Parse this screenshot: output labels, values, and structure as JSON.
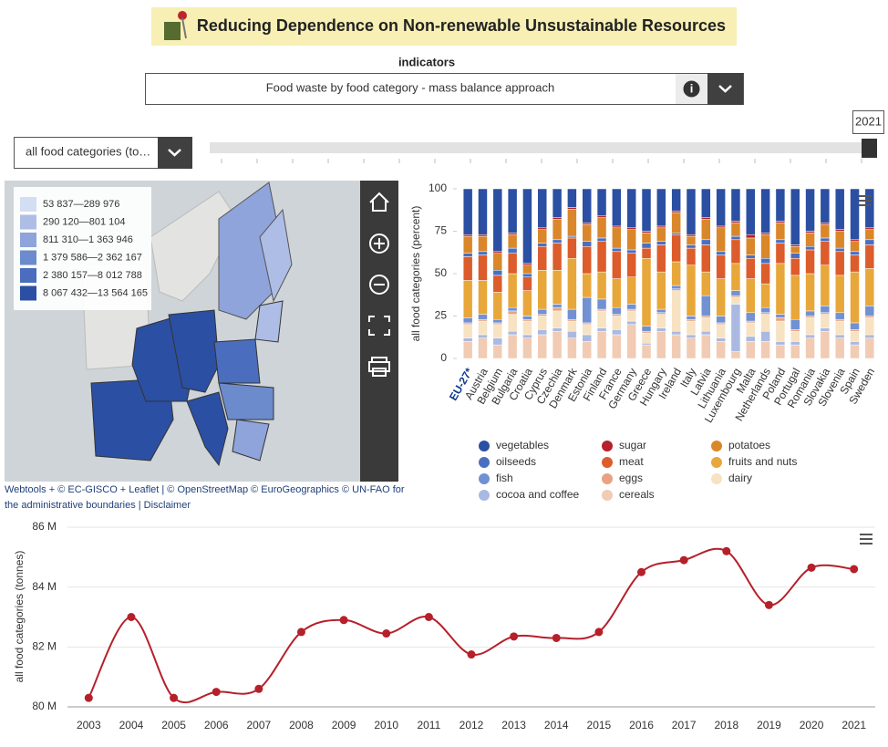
{
  "header": {
    "title": "Reducing Dependence on Non-renewable Unsustainable Resources"
  },
  "indicators": {
    "label": "indicators",
    "selected": "Food waste by food category - mass balance approach"
  },
  "category_select": "all food categories (to…",
  "slider": {
    "year": 2021
  },
  "map": {
    "legend": [
      {
        "label": "53 837—289 976",
        "color": "#d3def2"
      },
      {
        "label": "290 120—801 104",
        "color": "#adbde6"
      },
      {
        "label": "811 310—1 363 946",
        "color": "#8ea4da"
      },
      {
        "label": "1 379 586—2 362 167",
        "color": "#6c8bcd"
      },
      {
        "label": "2 380 157—8 012 788",
        "color": "#4a6dbe"
      },
      {
        "label": "8 067 432—13 564 165",
        "color": "#2b4fa2"
      }
    ],
    "credits": [
      "Webtools + © EC-GISCO + Leaflet | © OpenStreetMap © EuroGeographics © UN-FAO for",
      "the administrative boundaries | Disclaimer"
    ]
  },
  "chart_data": [
    {
      "type": "bar",
      "stacked": true,
      "ylabel": "all food categories (percent)",
      "ylim": [
        0,
        100
      ],
      "yticks": [
        0,
        25,
        50,
        75,
        100
      ],
      "categories": [
        "EU-27*",
        "Austria",
        "Belgium",
        "Bulgaria",
        "Croatia",
        "Cyprus",
        "Czechia",
        "Denmark",
        "Estonia",
        "Finland",
        "France",
        "Germany",
        "Greece",
        "Hungary",
        "Ireland",
        "Italy",
        "Latvia",
        "Lithuania",
        "Luxembourg",
        "Malta",
        "Netherlands",
        "Poland",
        "Portugal",
        "Romania",
        "Slovakia",
        "Slovenia",
        "Spain",
        "Sweden"
      ],
      "series": [
        {
          "name": "vegetables",
          "color": "#2b4fa2",
          "values": [
            27,
            27,
            37,
            26,
            44,
            23,
            17,
            11,
            20,
            16,
            22,
            23,
            25,
            22,
            13,
            27,
            17,
            22,
            19,
            27,
            26,
            19,
            33,
            25,
            20,
            24,
            30,
            23
          ]
        },
        {
          "name": "sugar",
          "color": "#b5202a",
          "values": [
            1,
            1,
            1,
            1,
            1,
            1,
            1,
            1,
            1,
            1,
            1,
            1,
            1,
            1,
            1,
            1,
            1,
            1,
            1,
            2,
            1,
            1,
            1,
            1,
            1,
            1,
            1,
            1
          ]
        },
        {
          "name": "potatoes",
          "color": "#d9872a",
          "values": [
            10,
            9,
            10,
            8,
            5,
            8,
            12,
            16,
            10,
            12,
            12,
            12,
            6,
            8,
            12,
            5,
            12,
            14,
            8,
            10,
            14,
            10,
            4,
            8,
            8,
            10,
            6,
            6
          ]
        },
        {
          "name": "oilseeds",
          "color": "#4a6fc0",
          "values": [
            2,
            2,
            3,
            3,
            2,
            2,
            2,
            1,
            3,
            2,
            2,
            2,
            3,
            2,
            1,
            2,
            3,
            2,
            2,
            2,
            3,
            2,
            3,
            2,
            2,
            2,
            2,
            3
          ]
        },
        {
          "name": "meat",
          "color": "#dc5c2c",
          "values": [
            14,
            15,
            10,
            12,
            8,
            14,
            16,
            12,
            16,
            18,
            16,
            14,
            6,
            16,
            16,
            10,
            16,
            14,
            14,
            12,
            12,
            12,
            10,
            14,
            14,
            14,
            10,
            14
          ]
        },
        {
          "name": "fruits and nuts",
          "color": "#e8a73a",
          "values": [
            22,
            20,
            16,
            20,
            15,
            23,
            20,
            30,
            14,
            16,
            17,
            16,
            40,
            22,
            14,
            30,
            14,
            22,
            16,
            20,
            14,
            30,
            26,
            22,
            24,
            22,
            30,
            22
          ]
        },
        {
          "name": "fish",
          "color": "#7191d2",
          "values": [
            3,
            3,
            2,
            2,
            2,
            3,
            2,
            6,
            15,
            6,
            4,
            3,
            3,
            2,
            2,
            2,
            12,
            4,
            3,
            5,
            3,
            2,
            6,
            3,
            4,
            4,
            4,
            6
          ]
        },
        {
          "name": "eggs",
          "color": "#e8a283",
          "values": [
            1,
            1,
            1,
            2,
            1,
            1,
            2,
            1,
            1,
            1,
            1,
            1,
            1,
            1,
            1,
            1,
            1,
            1,
            1,
            1,
            1,
            2,
            1,
            1,
            1,
            1,
            1,
            1
          ]
        },
        {
          "name": "dairy",
          "color": "#f7e2c2",
          "values": [
            8,
            8,
            8,
            10,
            8,
            8,
            10,
            6,
            6,
            10,
            8,
            6,
            6,
            8,
            24,
            8,
            8,
            8,
            4,
            8,
            10,
            12,
            6,
            10,
            8,
            8,
            6,
            10
          ]
        },
        {
          "name": "cocoa and coffee",
          "color": "#a9b9e2",
          "values": [
            2,
            2,
            4,
            2,
            2,
            3,
            2,
            4,
            4,
            2,
            3,
            2,
            1,
            2,
            2,
            2,
            2,
            2,
            28,
            3,
            6,
            2,
            2,
            2,
            2,
            2,
            2,
            2
          ]
        },
        {
          "name": "cereals",
          "color": "#f1cbb3",
          "values": [
            10,
            12,
            8,
            14,
            12,
            14,
            16,
            12,
            10,
            16,
            14,
            20,
            8,
            16,
            14,
            12,
            14,
            10,
            4,
            10,
            10,
            8,
            8,
            12,
            16,
            12,
            8,
            12
          ]
        }
      ]
    },
    {
      "type": "line",
      "ylabel": "all food categories (tonnes)",
      "color": "#b5202a",
      "grid": true,
      "categories": [
        "2003",
        "2004",
        "2005",
        "2006",
        "2007",
        "2008",
        "2009",
        "2010",
        "2011",
        "2012",
        "2013",
        "2014",
        "2015",
        "2016",
        "2017",
        "2018",
        "2019",
        "2020",
        "2021"
      ],
      "values": [
        80300000,
        83000000,
        80300000,
        80500000,
        80600000,
        82500000,
        82900000,
        82450000,
        83000000,
        81750000,
        82350000,
        82300000,
        82500000,
        84500000,
        84900000,
        85200000,
        83400000,
        84650000,
        84600000
      ],
      "ylim": [
        80000000,
        86000000
      ],
      "yticks": [
        {
          "value": 80000000,
          "label": "80 M"
        },
        {
          "value": 82000000,
          "label": "82 M"
        },
        {
          "value": 84000000,
          "label": "84 M"
        },
        {
          "value": 86000000,
          "label": "86 M"
        }
      ]
    }
  ]
}
